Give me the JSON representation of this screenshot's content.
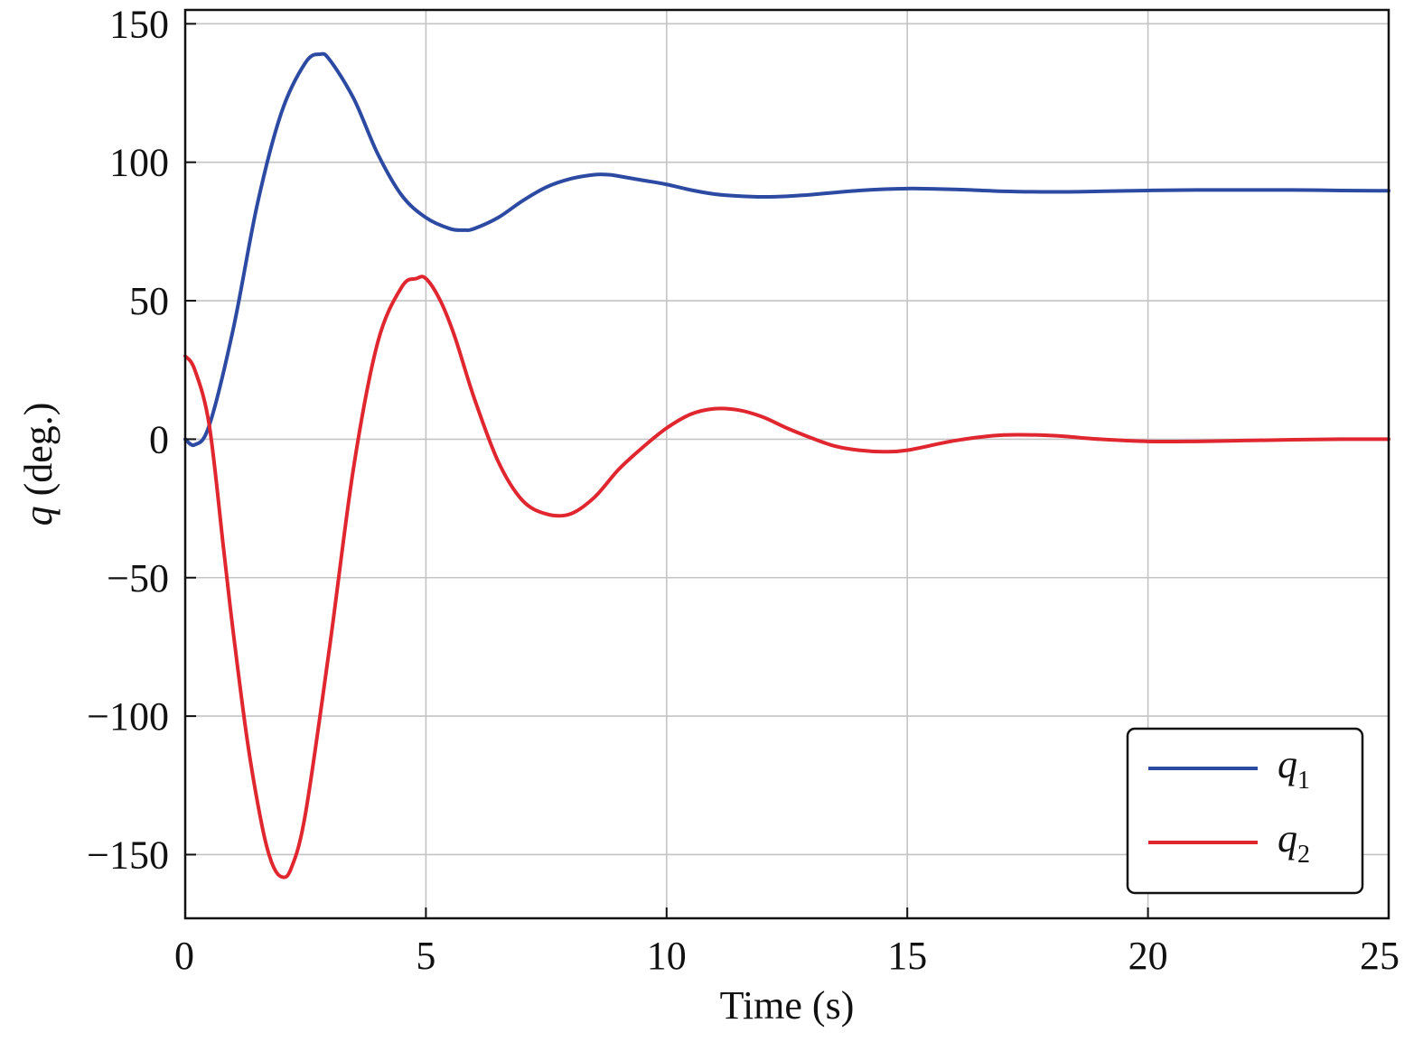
{
  "chart_data": {
    "type": "line",
    "xlabel": "Time (s)",
    "ylabel_symbol": "q",
    "ylabel_unit": " (deg.)",
    "xlim": [
      0,
      25
    ],
    "ylim": [
      -173,
      155
    ],
    "xticks": [
      0,
      5,
      10,
      15,
      20,
      25
    ],
    "xtick_labels": [
      "0",
      "5",
      "10",
      "15",
      "20",
      "25"
    ],
    "yticks": [
      150,
      100,
      50,
      0,
      -50,
      -100,
      -150
    ],
    "ytick_labels": [
      "150",
      "100",
      "50",
      "0",
      "−50",
      "−100",
      "−150"
    ],
    "grid": true,
    "legend_position": "lower-right",
    "series": [
      {
        "name_symbol": "q",
        "name_subscript": "1",
        "color": "#2d4aa3",
        "x": [
          0,
          0.2,
          0.5,
          1.0,
          1.5,
          2.0,
          2.5,
          2.8,
          3.0,
          3.5,
          4.0,
          4.5,
          5.0,
          5.5,
          5.8,
          6.0,
          6.5,
          7.0,
          7.5,
          8.0,
          8.5,
          8.8,
          9.0,
          9.5,
          10.0,
          10.5,
          11.0,
          11.5,
          12.0,
          12.5,
          13.0,
          14.0,
          15.0,
          16.0,
          17.0,
          18.0,
          19.0,
          20.0,
          21.0,
          22.0,
          23.0,
          24.0,
          25.0
        ],
        "y": [
          0,
          -2,
          5,
          40,
          85,
          118,
          136,
          139,
          137,
          123,
          103,
          88,
          80,
          76,
          75.5,
          76,
          80,
          86,
          91,
          94,
          95.5,
          95.5,
          95,
          93.5,
          92,
          90,
          88.5,
          87.8,
          87.5,
          87.7,
          88.3,
          89.8,
          90.5,
          90.2,
          89.5,
          89.3,
          89.5,
          89.8,
          90,
          90,
          90,
          89.8,
          89.7
        ]
      },
      {
        "name_symbol": "q",
        "name_subscript": "2",
        "color": "#e0262e",
        "x": [
          0,
          0.2,
          0.5,
          0.8,
          1.0,
          1.3,
          1.6,
          1.8,
          2.0,
          2.2,
          2.5,
          3.0,
          3.5,
          4.0,
          4.5,
          4.8,
          5.0,
          5.3,
          5.6,
          6.0,
          6.5,
          7.0,
          7.5,
          8.0,
          8.5,
          9.0,
          9.5,
          10.0,
          10.5,
          11.0,
          11.5,
          12.0,
          12.5,
          13.0,
          13.5,
          14.0,
          14.5,
          15.0,
          16.0,
          17.0,
          18.0,
          19.0,
          20.0,
          21.0,
          22.0,
          23.0,
          24.0,
          25.0
        ],
        "y": [
          30,
          25,
          5,
          -40,
          -70,
          -110,
          -140,
          -153,
          -158,
          -155,
          -135,
          -75,
          -10,
          35,
          55,
          58,
          58,
          50,
          37,
          15,
          -8,
          -22,
          -27,
          -27,
          -21,
          -11,
          -3,
          4,
          9,
          11,
          10.5,
          8,
          4,
          0.5,
          -2.5,
          -4,
          -4.5,
          -4,
          -0.5,
          1.5,
          1.3,
          0,
          -0.8,
          -0.8,
          -0.5,
          -0.2,
          0,
          0
        ]
      }
    ]
  }
}
